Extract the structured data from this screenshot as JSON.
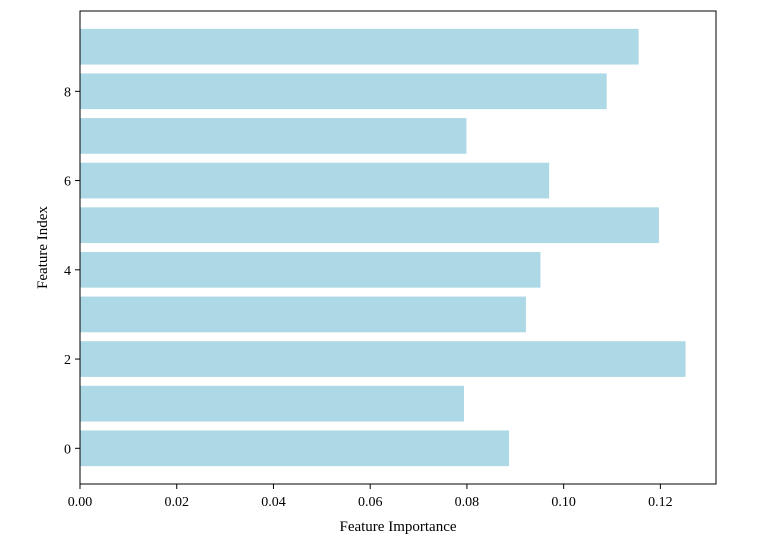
{
  "chart_data": {
    "type": "bar",
    "orientation": "horizontal",
    "title": "",
    "xlabel": "Feature Importance",
    "ylabel": "Feature Index",
    "categories": [
      0,
      1,
      2,
      3,
      4,
      5,
      6,
      7,
      8,
      9
    ],
    "values": [
      0.0887,
      0.0794,
      0.1252,
      0.0922,
      0.0952,
      0.1197,
      0.097,
      0.0799,
      0.1089,
      0.1155
    ],
    "xlim": [
      0,
      0.1315
    ],
    "ylim": [
      -0.8,
      9.8
    ],
    "xticks": [
      0.0,
      0.02,
      0.04,
      0.06,
      0.08,
      0.1,
      0.12
    ],
    "xtick_labels": [
      "0.00",
      "0.02",
      "0.04",
      "0.06",
      "0.08",
      "0.10",
      "0.12"
    ],
    "yticks": [
      0,
      2,
      4,
      6,
      8
    ],
    "ytick_labels": [
      "0",
      "2",
      "4",
      "6",
      "8"
    ],
    "bar_color": "#add8e6",
    "grid": false,
    "legend": "none"
  }
}
